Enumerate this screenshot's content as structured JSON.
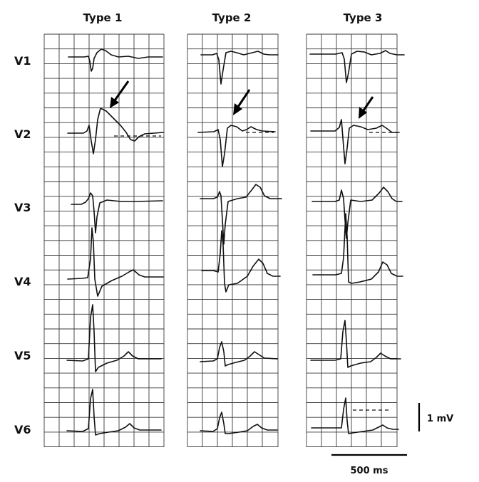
{
  "figure": {
    "columns": [
      {
        "title": "Type 1"
      },
      {
        "title": "Type 2"
      },
      {
        "title": "Type 3"
      }
    ],
    "leads": [
      "V1",
      "V2",
      "V3",
      "V4",
      "V5",
      "V6"
    ],
    "scale": {
      "voltage": "1 mV",
      "time": "500 ms"
    }
  },
  "colors": {
    "trace": "#111111",
    "grid": "#3a3a3a",
    "background": "#ffffff"
  }
}
